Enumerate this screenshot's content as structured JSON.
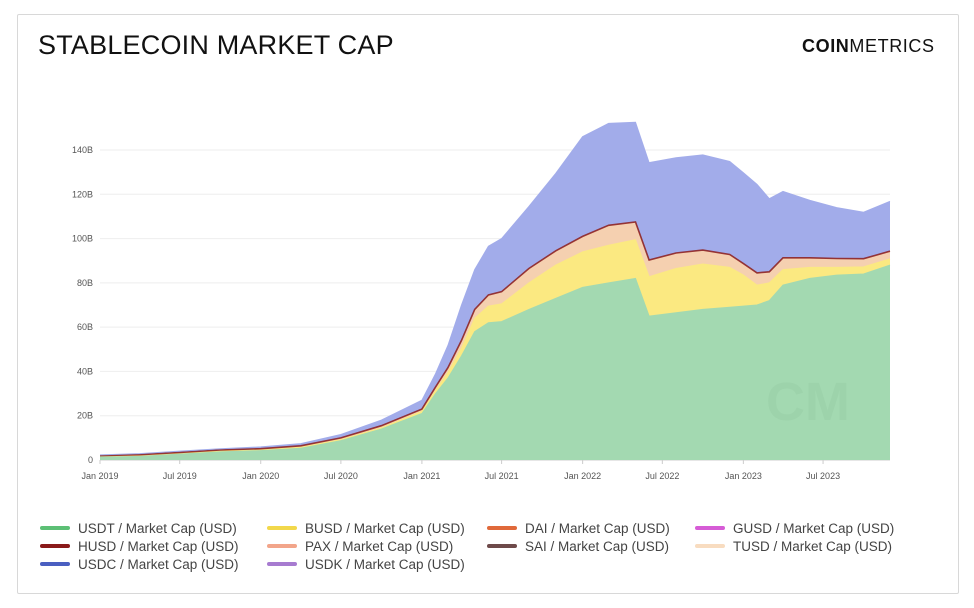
{
  "header": {
    "title": "STABLECOIN MARKET CAP",
    "brand_bold": "COIN",
    "brand_light": "METRICS"
  },
  "chart_data": {
    "type": "area",
    "stacked": true,
    "ylim": [
      0,
      160
    ],
    "y_ticks": [
      "0",
      "20B",
      "40B",
      "60B",
      "80B",
      "100B",
      "120B",
      "140B"
    ],
    "y_tick_values": [
      0,
      20,
      40,
      60,
      80,
      100,
      120,
      140
    ],
    "x_ticks": [
      "Jan 2019",
      "Jul 2019",
      "Jan 2020",
      "Jul 2020",
      "Jan 2021",
      "Jul 2021",
      "Jan 2022",
      "Jul 2022",
      "Jan 2023",
      "Jul 2023"
    ],
    "x_tick_values": [
      "2019-01-01",
      "2019-07-01",
      "2020-01-01",
      "2020-07-01",
      "2021-01-01",
      "2021-07-01",
      "2022-01-01",
      "2022-07-01",
      "2023-01-01",
      "2023-07-01"
    ],
    "x_range": [
      "2019-01-01",
      "2023-11-30"
    ],
    "x": [
      "2019-01-01",
      "2019-04-01",
      "2019-07-01",
      "2019-10-01",
      "2020-01-01",
      "2020-04-01",
      "2020-07-01",
      "2020-10-01",
      "2021-01-01",
      "2021-02-01",
      "2021-03-01",
      "2021-04-01",
      "2021-05-01",
      "2021-06-01",
      "2021-07-01",
      "2021-09-01",
      "2021-11-01",
      "2022-01-01",
      "2022-03-01",
      "2022-05-01",
      "2022-06-01",
      "2022-08-01",
      "2022-10-01",
      "2022-12-01",
      "2023-01-01",
      "2023-02-01",
      "2023-03-01",
      "2023-04-01",
      "2023-06-01",
      "2023-08-01",
      "2023-10-01",
      "2023-11-30"
    ],
    "series": [
      {
        "name": "USDT / Market Cap (USD)",
        "color": "#a3d9b1",
        "legend_color": "#5cbf75",
        "values": [
          1.8,
          2.0,
          3.0,
          4.0,
          4.5,
          5.5,
          9.0,
          14.0,
          21.0,
          30.0,
          37.0,
          47.0,
          58.0,
          62.0,
          62.5,
          68.0,
          73.0,
          78.0,
          80.0,
          82.0,
          65.0,
          66.5,
          68.0,
          69.0,
          69.5,
          70.0,
          72.0,
          79.0,
          82.0,
          83.5,
          84.0,
          88.0
        ]
      },
      {
        "name": "BUSD / Market Cap (USD)",
        "color": "#fbe981",
        "legend_color": "#f2d84b",
        "values": [
          0,
          0.1,
          0.1,
          0.1,
          0.2,
          0.3,
          0.2,
          0.5,
          1.0,
          1.5,
          2.5,
          3.5,
          6.0,
          7.5,
          8.0,
          12.0,
          15.0,
          16.0,
          17.0,
          17.5,
          17.8,
          20.0,
          20.5,
          18.0,
          14.0,
          9.0,
          8.0,
          7.0,
          5.0,
          3.5,
          3.2,
          2.8
        ]
      },
      {
        "name": "DAI / Market Cap (USD)",
        "color": "#f5d0b0",
        "legend_color": "#e87a3c",
        "values": [
          0.2,
          0.3,
          0.3,
          0.4,
          0.4,
          0.6,
          0.8,
          1.0,
          1.0,
          1.5,
          2.2,
          3.5,
          4.0,
          5.0,
          5.5,
          6.5,
          6.5,
          7.0,
          9.0,
          8.0,
          7.5,
          7.0,
          6.3,
          5.8,
          5.2,
          5.5,
          5.0,
          5.3,
          4.3,
          4.0,
          3.7,
          3.5
        ]
      },
      {
        "name": "USDC / Market Cap (USD)",
        "color": "#a2acea",
        "legend_color": "#4a5fc1",
        "values": [
          0.3,
          0.5,
          0.6,
          0.6,
          0.8,
          1.0,
          1.5,
          2.5,
          4.0,
          6.0,
          10.0,
          16.0,
          18.0,
          22.0,
          24.0,
          28.0,
          35.0,
          45.0,
          46.0,
          45.0,
          44.0,
          43.0,
          43.0,
          42.0,
          41.0,
          40.0,
          33.0,
          30.0,
          26.0,
          23.0,
          21.0,
          22.5
        ]
      }
    ]
  },
  "legend": [
    {
      "label": "USDT / Market Cap (USD)",
      "color": "#5cbf75"
    },
    {
      "label": "BUSD / Market Cap (USD)",
      "color": "#f2d84b"
    },
    {
      "label": "DAI / Market Cap (USD)",
      "color": "#e0693a"
    },
    {
      "label": "GUSD / Market Cap (USD)",
      "color": "#d65cd6"
    },
    {
      "label": "HUSD / Market Cap (USD)",
      "color": "#8a1a1a"
    },
    {
      "label": "PAX / Market Cap (USD)",
      "color": "#f2a58a"
    },
    {
      "label": "SAI / Market Cap (USD)",
      "color": "#6e4a4a"
    },
    {
      "label": "TUSD / Market Cap (USD)",
      "color": "#f8dcc0"
    },
    {
      "label": "USDC / Market Cap (USD)",
      "color": "#4a5fc1"
    },
    {
      "label": "USDK / Market Cap (USD)",
      "color": "#a77bd0"
    }
  ]
}
